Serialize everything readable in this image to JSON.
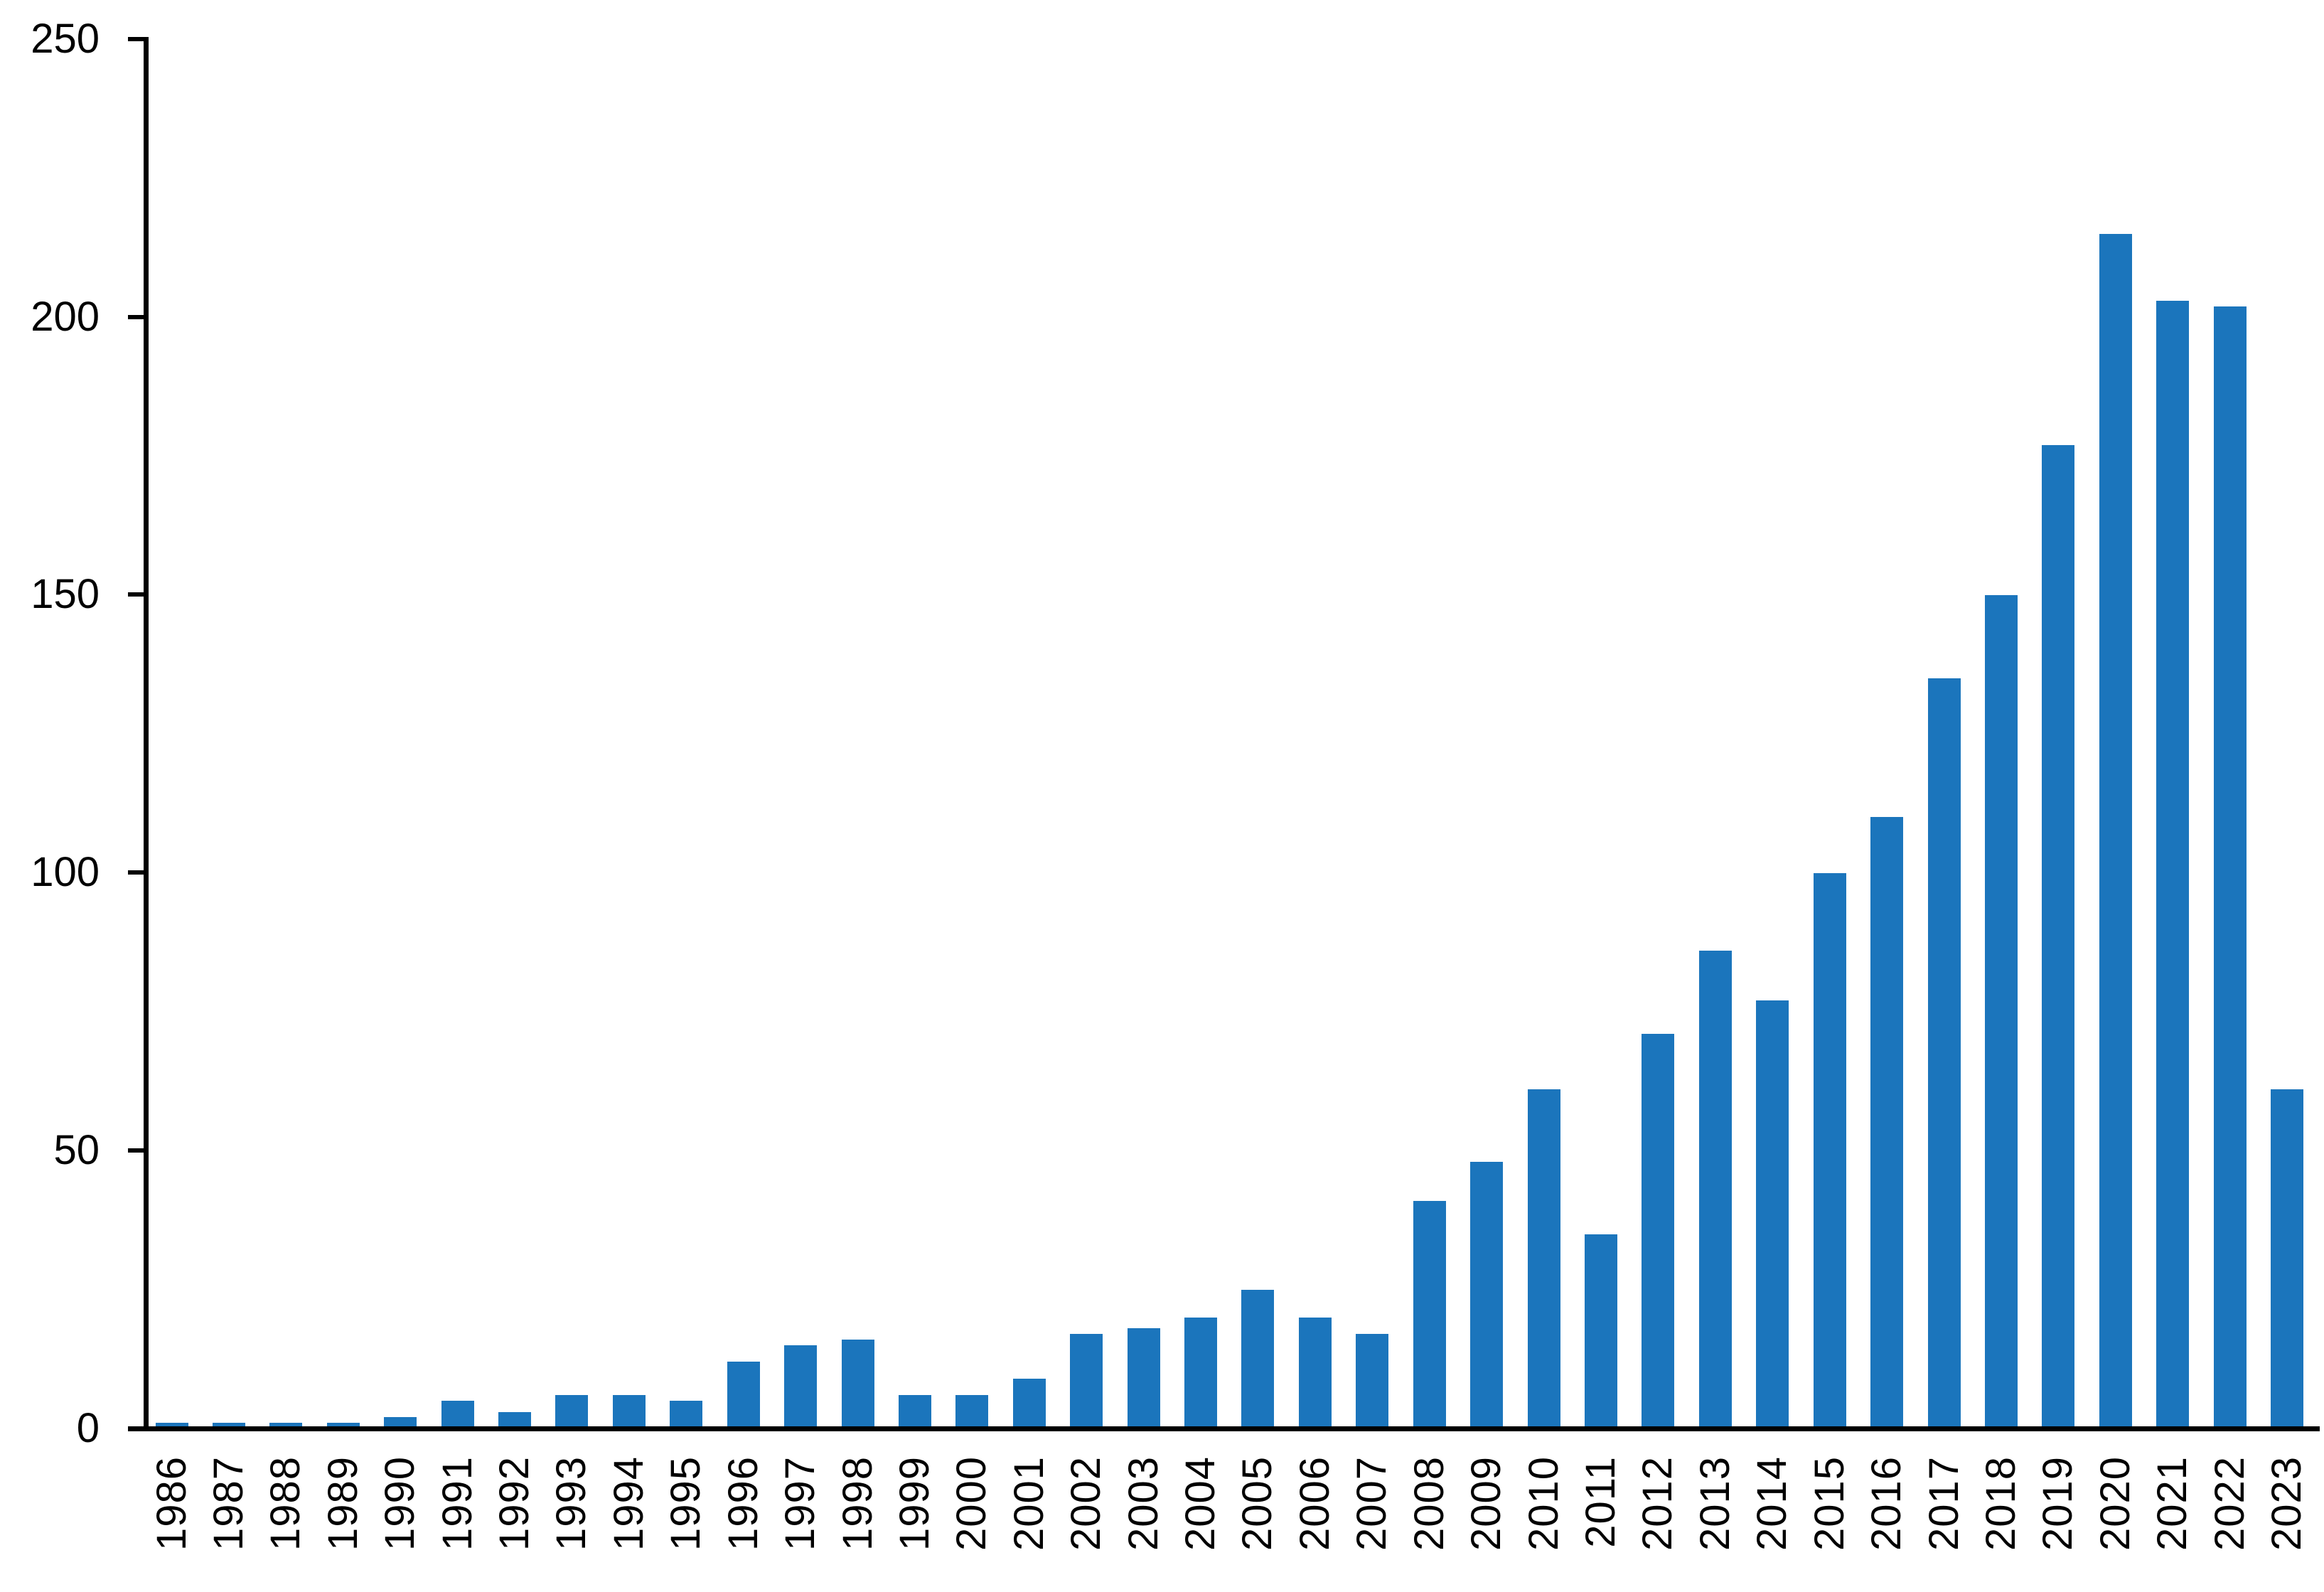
{
  "chart_data": {
    "type": "bar",
    "title": "",
    "xlabel": "",
    "ylabel": "",
    "categories": [
      "1986",
      "1987",
      "1988",
      "1989",
      "1990",
      "1991",
      "1992",
      "1993",
      "1994",
      "1995",
      "1996",
      "1997",
      "1998",
      "1999",
      "2000",
      "2001",
      "2002",
      "2003",
      "2004",
      "2005",
      "2006",
      "2007",
      "2008",
      "2009",
      "2010",
      "2011",
      "2012",
      "2013",
      "2014",
      "2015",
      "2016",
      "2017",
      "2018",
      "2019",
      "2020",
      "2021",
      "2022",
      "2023"
    ],
    "values": [
      1,
      1,
      1,
      1,
      2,
      5,
      3,
      6,
      6,
      5,
      12,
      15,
      16,
      6,
      6,
      9,
      17,
      18,
      20,
      25,
      20,
      17,
      41,
      48,
      61,
      35,
      71,
      86,
      77,
      100,
      110,
      135,
      150,
      177,
      215,
      203,
      202,
      61
    ],
    "ylim": [
      0,
      250
    ],
    "yticks": [
      0,
      50,
      100,
      150,
      200,
      250
    ],
    "grid": false,
    "legend": null,
    "bar_color": "#1B75BC",
    "axis_color": "#000000"
  }
}
